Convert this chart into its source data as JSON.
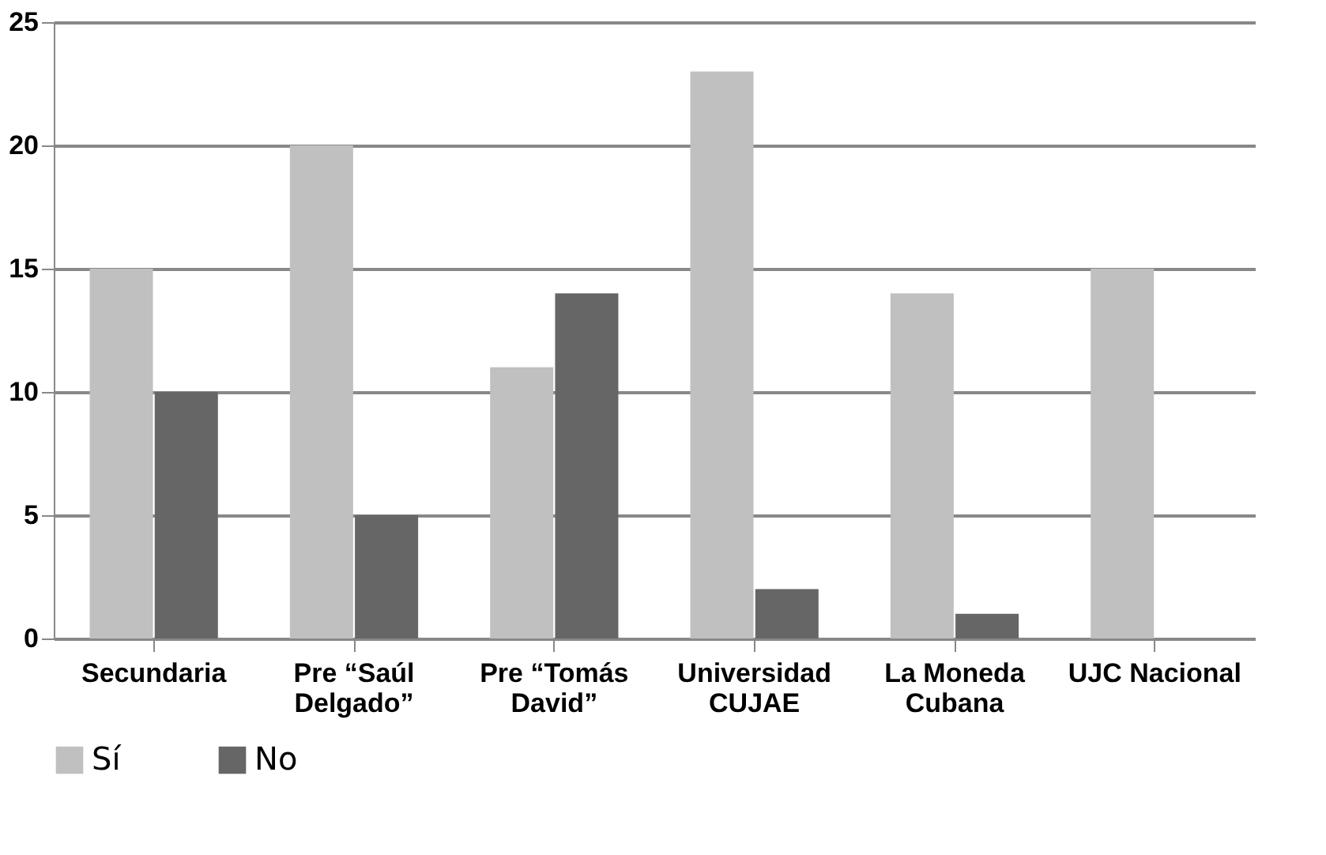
{
  "chart_data": {
    "type": "bar",
    "categories": [
      "Secundaria",
      "Pre “Saúl\nDelgado”",
      "Pre “Tomás\nDavid”",
      "Universidad\nCUJAE",
      "La Moneda\nCubana",
      "UJC Nacional"
    ],
    "series": [
      {
        "name": "Sí",
        "color": "#c0c0c0",
        "values": [
          15,
          20,
          11,
          23,
          14,
          15
        ]
      },
      {
        "name": "No",
        "color": "#666666",
        "values": [
          10,
          5,
          14,
          2,
          1,
          0
        ]
      }
    ],
    "ylim": [
      0,
      25
    ],
    "yticks": [
      0,
      5,
      10,
      15,
      20,
      25
    ],
    "grid": "y",
    "legend": "bottom"
  }
}
